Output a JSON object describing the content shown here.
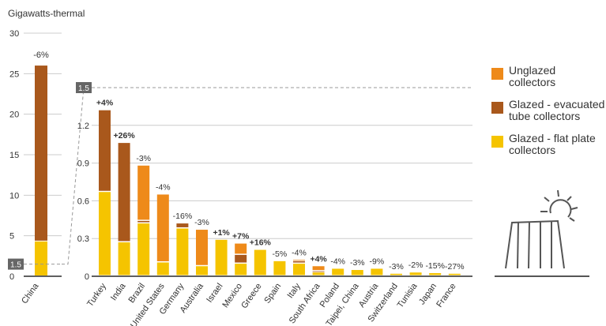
{
  "chart_data": {
    "type": "bar",
    "stacked": true,
    "ylabel": "Gigawatts-thermal",
    "colors": {
      "flat_plate": "#F5C400",
      "evacuated": "#A9581C",
      "unglazed": "#EE8A1A",
      "axis": "#666666",
      "grid": "#cccccc",
      "marker": "#666666"
    },
    "left_panel": {
      "categories": [
        "China"
      ],
      "ylim": [
        0,
        30
      ],
      "yticks": [
        0,
        5,
        10,
        15,
        20,
        25,
        30
      ],
      "ytick_labels": [
        "0",
        "5",
        "10",
        "15",
        "20",
        "25",
        "30"
      ],
      "series": [
        {
          "key": "flat_plate",
          "values": [
            4.3
          ]
        },
        {
          "key": "evacuated",
          "values": [
            21.7
          ]
        },
        {
          "key": "unglazed",
          "values": [
            0
          ]
        }
      ],
      "change_labels": [
        "-6%"
      ],
      "change_bold": [
        false
      ],
      "break_marker": "1.5"
    },
    "right_panel": {
      "categories": [
        "Turkey",
        "India",
        "Brazil",
        "United States",
        "Germany",
        "Australia",
        "Israel",
        "Mexico",
        "Greece",
        "Spain",
        "Italy",
        "South Africa",
        "Poland",
        "Taipei, China",
        "Austria",
        "Switzerland",
        "Tunisia",
        "Japan",
        "France"
      ],
      "ylim": [
        0,
        1.5
      ],
      "yticks": [
        0,
        0.3,
        0.6,
        0.9,
        1.2
      ],
      "ytick_labels": [
        "0",
        "0.3",
        "0.6",
        "0.9",
        "1.2"
      ],
      "series": [
        {
          "key": "flat_plate",
          "values": [
            0.67,
            0.27,
            0.42,
            0.11,
            0.38,
            0.08,
            0.29,
            0.1,
            0.21,
            0.12,
            0.1,
            0.03,
            0.06,
            0.05,
            0.06,
            0.02,
            0.03,
            0.025,
            0.02
          ]
        },
        {
          "key": "evacuated",
          "values": [
            0.65,
            0.79,
            0.02,
            0.0,
            0.04,
            0.0,
            0.0,
            0.07,
            0.0,
            0.0,
            0.02,
            0.01,
            0.0,
            0.0,
            0.0,
            0.0,
            0.0,
            0.0,
            0.0
          ]
        },
        {
          "key": "unglazed",
          "values": [
            0.0,
            0.0,
            0.44,
            0.54,
            0.0,
            0.29,
            0.0,
            0.09,
            0.0,
            0.0,
            0.01,
            0.04,
            0.0,
            0.0,
            0.0,
            0.0,
            0.0,
            0.0,
            0.0
          ]
        }
      ],
      "change_labels": [
        "+4%",
        "+26%",
        "-3%",
        "-4%",
        "-16%",
        "-3%",
        "+1%",
        "+7%",
        "+16%",
        "-5%",
        "-4%",
        "+4%",
        "-4%",
        "-3%",
        "-9%",
        "-3%",
        "-2%",
        "-15%",
        "-27%"
      ],
      "change_bold": [
        true,
        true,
        false,
        false,
        false,
        false,
        true,
        true,
        true,
        false,
        false,
        true,
        false,
        false,
        false,
        false,
        false,
        false,
        false
      ],
      "break_marker": "1.5"
    },
    "legend": [
      {
        "key": "unglazed",
        "label": "Unglazed collectors"
      },
      {
        "key": "evacuated",
        "label": "Glazed - evacuated tube collectors"
      },
      {
        "key": "flat_plate",
        "label": "Glazed - flat plate collectors"
      }
    ]
  }
}
